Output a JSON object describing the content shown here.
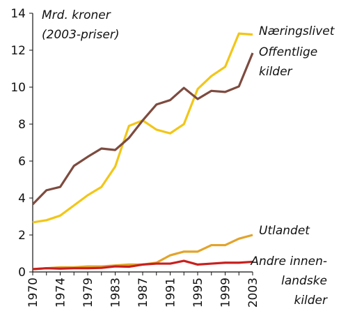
{
  "chart_data": {
    "type": "line",
    "y_label": [
      "Mrd. kroner",
      "(2003-priser)"
    ],
    "categories": [
      "1970",
      null,
      "1974",
      null,
      "1979",
      null,
      "1983",
      null,
      "1987",
      null,
      "1991",
      null,
      "1995",
      null,
      "1999",
      null,
      "2003"
    ],
    "ylim": [
      0,
      14
    ],
    "yticks": [
      0,
      2,
      4,
      6,
      8,
      10,
      12,
      14
    ],
    "series": [
      {
        "name": [
          "Næringslivet"
        ],
        "color": "#f2c618",
        "values": [
          2.68,
          2.8,
          3.05,
          3.6,
          4.15,
          4.6,
          5.7,
          7.9,
          8.2,
          7.7,
          7.5,
          8.0,
          9.9,
          10.6,
          11.1,
          12.9,
          12.85
        ]
      },
      {
        "name": [
          "Offentlige",
          "kilder"
        ],
        "color": "#7d4b3f",
        "values": [
          3.66,
          4.42,
          4.6,
          5.74,
          6.23,
          6.68,
          6.6,
          7.25,
          8.2,
          9.06,
          9.3,
          9.96,
          9.36,
          9.8,
          9.74,
          10.04,
          11.85
        ]
      },
      {
        "name": [
          "Utlandet"
        ],
        "color": "#e2a42a",
        "values": [
          0.15,
          0.2,
          0.25,
          0.25,
          0.3,
          0.3,
          0.35,
          0.4,
          0.4,
          0.5,
          0.9,
          1.1,
          1.1,
          1.45,
          1.45,
          1.8,
          2.0
        ]
      },
      {
        "name": [
          "Andre innen-",
          "landske",
          "kilder"
        ],
        "color": "#c8201e",
        "values": [
          0.15,
          0.2,
          0.18,
          0.2,
          0.2,
          0.22,
          0.3,
          0.28,
          0.4,
          0.45,
          0.45,
          0.6,
          0.4,
          0.45,
          0.5,
          0.5,
          0.55
        ]
      }
    ]
  }
}
